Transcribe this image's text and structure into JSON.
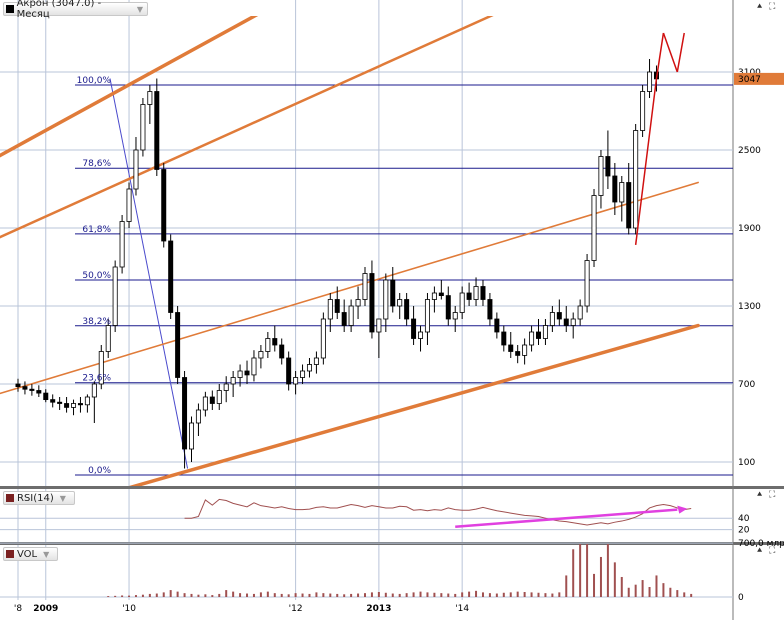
{
  "colors": {
    "up": "#ffffff",
    "down": "#000000",
    "channel": "#e07b39",
    "fib": "#1a1a8c",
    "grid": "#b9c4d9",
    "rsi": "#a05050",
    "rsi_trend": "#e040e0",
    "vol": "#a05050",
    "price_tag": "#e07b39"
  },
  "icons": [
    "pin-icon",
    "expand-icon"
  ],
  "chart_data": [
    {
      "type": "candlestick",
      "title": "Акрон (3047.0) - Месяц",
      "price_label": "3047",
      "ylim": [
        0,
        3400
      ],
      "y_ticks": [
        100,
        700,
        1300,
        1900,
        2500,
        3100
      ],
      "x_labels": [
        "'8",
        "2009",
        "'10",
        "'12",
        "2013",
        "'14"
      ],
      "x_label_month_index": [
        0,
        4,
        16,
        40,
        52,
        64
      ],
      "fib_levels": [
        {
          "label": "100,0%",
          "value": 3000
        },
        {
          "label": "78,6%",
          "value": 2360
        },
        {
          "label": "61,8%",
          "value": 1855
        },
        {
          "label": "50,0%",
          "value": 1500
        },
        {
          "label": "38,2%",
          "value": 1148
        },
        {
          "label": "23,6%",
          "value": 710
        },
        {
          "label": "0,0%",
          "value": 0
        }
      ],
      "candles": [
        [
          700,
          740,
          640,
          680
        ],
        [
          680,
          720,
          620,
          660
        ],
        [
          660,
          700,
          610,
          650
        ],
        [
          650,
          690,
          600,
          630
        ],
        [
          630,
          660,
          560,
          580
        ],
        [
          580,
          620,
          520,
          560
        ],
        [
          560,
          600,
          500,
          550
        ],
        [
          550,
          600,
          480,
          520
        ],
        [
          520,
          580,
          460,
          550
        ],
        [
          550,
          600,
          480,
          540
        ],
        [
          540,
          620,
          480,
          600
        ],
        [
          600,
          720,
          400,
          700
        ],
        [
          700,
          1000,
          660,
          950
        ],
        [
          950,
          1200,
          900,
          1150
        ],
        [
          1150,
          1650,
          1100,
          1600
        ],
        [
          1600,
          2000,
          1550,
          1950
        ],
        [
          1950,
          2250,
          1900,
          2200
        ],
        [
          2200,
          2600,
          2150,
          2500
        ],
        [
          2500,
          2900,
          2450,
          2850
        ],
        [
          2850,
          3000,
          2700,
          2950
        ],
        [
          2950,
          3050,
          2300,
          2350
        ],
        [
          2350,
          2400,
          1750,
          1800
        ],
        [
          1800,
          1850,
          1200,
          1250
        ],
        [
          1250,
          1300,
          700,
          750
        ],
        [
          750,
          800,
          50,
          200
        ],
        [
          200,
          450,
          100,
          400
        ],
        [
          400,
          550,
          300,
          500
        ],
        [
          500,
          640,
          450,
          600
        ],
        [
          600,
          650,
          500,
          550
        ],
        [
          550,
          700,
          500,
          650
        ],
        [
          650,
          760,
          560,
          700
        ],
        [
          700,
          800,
          600,
          750
        ],
        [
          750,
          850,
          680,
          800
        ],
        [
          800,
          880,
          700,
          770
        ],
        [
          770,
          960,
          720,
          900
        ],
        [
          900,
          1000,
          820,
          950
        ],
        [
          950,
          1100,
          900,
          1050
        ],
        [
          1050,
          1150,
          950,
          1000
        ],
        [
          1000,
          1050,
          850,
          900
        ],
        [
          900,
          950,
          650,
          700
        ],
        [
          700,
          800,
          620,
          750
        ],
        [
          750,
          850,
          700,
          800
        ],
        [
          800,
          900,
          750,
          850
        ],
        [
          850,
          950,
          780,
          900
        ],
        [
          900,
          1250,
          850,
          1200
        ],
        [
          1200,
          1400,
          1100,
          1350
        ],
        [
          1350,
          1450,
          1200,
          1250
        ],
        [
          1250,
          1350,
          1100,
          1150
        ],
        [
          1150,
          1350,
          1100,
          1300
        ],
        [
          1300,
          1450,
          1200,
          1350
        ],
        [
          1350,
          1600,
          1300,
          1550
        ],
        [
          1550,
          1650,
          1050,
          1100
        ],
        [
          1100,
          1200,
          900,
          1200
        ],
        [
          1200,
          1550,
          1100,
          1500
        ],
        [
          1500,
          1600,
          1250,
          1300
        ],
        [
          1300,
          1400,
          1200,
          1350
        ],
        [
          1350,
          1400,
          1150,
          1200
        ],
        [
          1200,
          1300,
          1000,
          1050
        ],
        [
          1050,
          1150,
          950,
          1100
        ],
        [
          1100,
          1400,
          1000,
          1350
        ],
        [
          1350,
          1450,
          1250,
          1400
        ],
        [
          1400,
          1500,
          1350,
          1380
        ],
        [
          1380,
          1450,
          1150,
          1200
        ],
        [
          1200,
          1300,
          1100,
          1250
        ],
        [
          1250,
          1450,
          1200,
          1400
        ],
        [
          1400,
          1480,
          1300,
          1350
        ],
        [
          1350,
          1520,
          1300,
          1450
        ],
        [
          1450,
          1500,
          1300,
          1350
        ],
        [
          1350,
          1400,
          1150,
          1200
        ],
        [
          1200,
          1250,
          1050,
          1100
        ],
        [
          1100,
          1150,
          950,
          1000
        ],
        [
          1000,
          1100,
          900,
          950
        ],
        [
          950,
          1000,
          860,
          920
        ],
        [
          920,
          1050,
          850,
          1000
        ],
        [
          1000,
          1150,
          950,
          1100
        ],
        [
          1100,
          1200,
          1000,
          1050
        ],
        [
          1050,
          1200,
          1000,
          1150
        ],
        [
          1150,
          1300,
          1100,
          1250
        ],
        [
          1250,
          1350,
          1150,
          1200
        ],
        [
          1200,
          1300,
          1100,
          1150
        ],
        [
          1150,
          1250,
          1050,
          1200
        ],
        [
          1200,
          1350,
          1150,
          1300
        ],
        [
          1300,
          1700,
          1250,
          1650
        ],
        [
          1650,
          2200,
          1600,
          2150
        ],
        [
          2150,
          2500,
          2050,
          2450
        ],
        [
          2450,
          2650,
          2200,
          2300
        ],
        [
          2300,
          2400,
          2000,
          2100
        ],
        [
          2100,
          2300,
          1950,
          2250
        ],
        [
          2250,
          2400,
          1850,
          1900
        ],
        [
          1900,
          2700,
          1850,
          2650
        ],
        [
          2650,
          3000,
          2600,
          2950
        ],
        [
          2950,
          3200,
          2900,
          3100
        ],
        [
          3100,
          3150,
          2950,
          3047
        ]
      ],
      "channel_lines": [
        {
          "from": [
            -8,
            2300
          ],
          "to": [
            98,
            5400
          ]
        },
        {
          "from": [
            -8,
            1700
          ],
          "to": [
            98,
            4250
          ]
        },
        {
          "from": [
            -8,
            540
          ],
          "to": [
            98,
            2250
          ]
        },
        {
          "from": [
            8,
            -220
          ],
          "to": [
            98,
            1150
          ]
        }
      ],
      "highlight_segments": [
        {
          "from": [
            89,
            1770
          ],
          "to": [
            92,
            3050
          ]
        },
        {
          "from": [
            92,
            3050
          ],
          "to": [
            93,
            3400
          ]
        },
        {
          "from": [
            93,
            3400
          ],
          "to": [
            95,
            3100
          ]
        },
        {
          "from": [
            95,
            3100
          ],
          "to": [
            96,
            3400
          ]
        }
      ]
    },
    {
      "type": "line",
      "title": "RSI(14)",
      "ylim": [
        0,
        100
      ],
      "y_ticks": [
        20,
        40
      ],
      "start_index": 24,
      "values": [
        40,
        40,
        43,
        72,
        63,
        73,
        71,
        66,
        63,
        60,
        67,
        62,
        60,
        58,
        60,
        57,
        55,
        55,
        56,
        59,
        60,
        58,
        58,
        61,
        64,
        62,
        59,
        62,
        60,
        58,
        58,
        61,
        60,
        54,
        55,
        53,
        55,
        54,
        58,
        55,
        54,
        54,
        56,
        59,
        56,
        53,
        51,
        49,
        47,
        45,
        44,
        43,
        40,
        37,
        35,
        34,
        32,
        30,
        28,
        30,
        32,
        30,
        33,
        35,
        38,
        42,
        48,
        58,
        62,
        64,
        62,
        58,
        55,
        57
      ],
      "trend": {
        "from": [
          63,
          25
        ],
        "to": [
          95,
          55
        ]
      }
    },
    {
      "type": "bar",
      "title": "VOL",
      "ylim": [
        0,
        1000
      ],
      "y_ticks": [
        {
          "label": "0",
          "value": 0
        },
        {
          "label": "700,0 млр",
          "value": 700
        }
      ],
      "start_index": 13,
      "values": [
        12,
        15,
        20,
        18,
        25,
        30,
        40,
        45,
        60,
        90,
        70,
        50,
        40,
        30,
        35,
        25,
        40,
        90,
        70,
        50,
        45,
        40,
        60,
        70,
        50,
        40,
        35,
        50,
        45,
        40,
        60,
        50,
        45,
        40,
        35,
        40,
        45,
        50,
        60,
        65,
        55,
        45,
        40,
        50,
        60,
        70,
        60,
        55,
        50,
        45,
        40,
        60,
        70,
        80,
        60,
        50,
        45,
        55,
        60,
        70,
        65,
        60,
        55,
        50,
        45,
        60,
        280,
        620,
        980,
        850,
        300,
        520,
        760,
        450,
        260,
        120,
        160,
        220,
        130,
        280,
        180,
        120,
        90,
        60,
        40
      ]
    }
  ]
}
